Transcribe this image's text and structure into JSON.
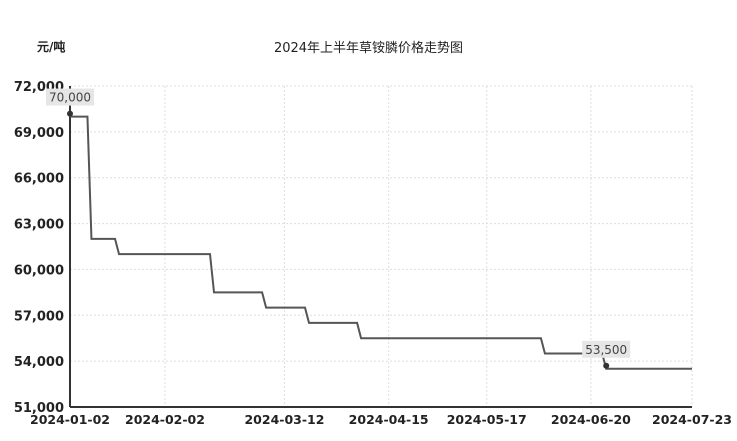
{
  "chart_data": {
    "type": "line",
    "step": true,
    "title": "2024年上半年草铵膦价格走势图",
    "ylabel": "元/吨",
    "xlabel": "",
    "ylim": [
      51000,
      72000
    ],
    "yticks": [
      "51,000",
      "54,000",
      "57,000",
      "60,000",
      "63,000",
      "66,000",
      "69,000",
      "72,000"
    ],
    "xlim": [
      "2024-01-02",
      "2024-07-23"
    ],
    "xticks": [
      "2024-01-02",
      "2024-02-02",
      "2024-03-12",
      "2024-04-15",
      "2024-05-17",
      "2024-06-20",
      "2024-07-23"
    ],
    "grid": true,
    "line_color": "#555555",
    "points": [
      {
        "date": "2024-01-02",
        "value": 70000
      },
      {
        "date": "2024-01-09",
        "value": 62000
      },
      {
        "date": "2024-01-18",
        "value": 61000
      },
      {
        "date": "2024-02-18",
        "value": 58500
      },
      {
        "date": "2024-03-06",
        "value": 57500
      },
      {
        "date": "2024-03-20",
        "value": 56500
      },
      {
        "date": "2024-04-06",
        "value": 55500
      },
      {
        "date": "2024-06-05",
        "value": 54500
      },
      {
        "date": "2024-06-25",
        "value": 53500
      },
      {
        "date": "2024-07-23",
        "value": 53500
      }
    ],
    "annotations": [
      {
        "date": "2024-01-02",
        "value": 70000,
        "label": "70,000"
      },
      {
        "date": "2024-06-25",
        "value": 53500,
        "label": "53,500"
      }
    ]
  }
}
